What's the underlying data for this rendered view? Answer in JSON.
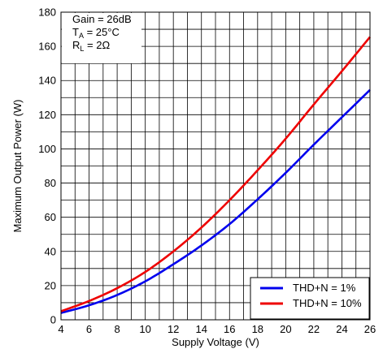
{
  "chart_data": {
    "type": "line",
    "title": "",
    "xlabel": "Supply Voltage (V)",
    "ylabel": "Maximum Output Power (W)",
    "xlim": [
      4,
      26
    ],
    "ylim": [
      0,
      180
    ],
    "x_ticks": [
      "4",
      "6",
      "8",
      "10",
      "12",
      "14",
      "16",
      "18",
      "20",
      "22",
      "24",
      "26"
    ],
    "y_ticks": [
      "0",
      "20",
      "40",
      "60",
      "80",
      "100",
      "120",
      "140",
      "160",
      "180"
    ],
    "grid": true,
    "legend_position": "bottom-right",
    "annotations": {
      "gain": "Gain = 26dB",
      "ta_main": "T",
      "ta_sub": "A",
      "ta_value": " = 25°C",
      "rl_main": "R",
      "rl_sub": "L",
      "rl_value": " = 2Ω"
    },
    "series": [
      {
        "name": "THD+N = 1%",
        "color": "#0000ee",
        "x": [
          4,
          6,
          8,
          10,
          12,
          14,
          16,
          18,
          20,
          22,
          24,
          26
        ],
        "values": [
          4,
          8.5,
          14.5,
          22.5,
          32.5,
          43.5,
          56,
          70.5,
          86,
          102.5,
          118.5,
          134.5
        ]
      },
      {
        "name": "THD+N = 10%",
        "color": "#ee0000",
        "x": [
          4,
          6,
          8,
          10,
          12,
          14,
          16,
          18,
          20,
          22,
          24,
          26
        ],
        "values": [
          5,
          11,
          18.5,
          28,
          40,
          54,
          70,
          87.5,
          106,
          126,
          145.5,
          165.5
        ]
      }
    ]
  }
}
